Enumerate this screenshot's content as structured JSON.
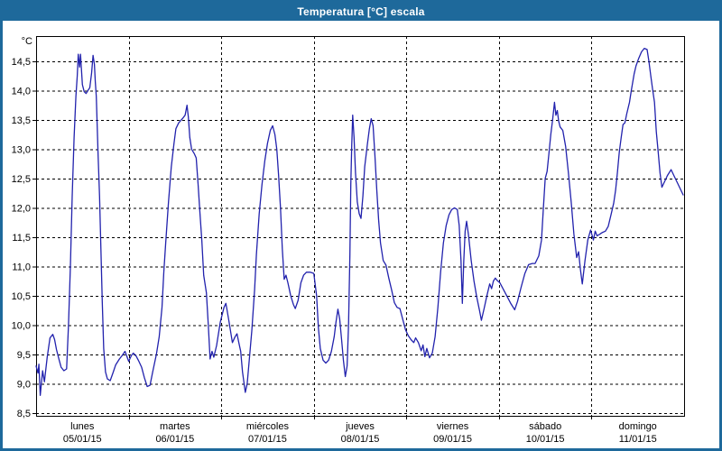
{
  "window": {
    "title": "Temperatura [°C] escala",
    "titlebar_color": "#1e699b",
    "border_color": "#1e699b"
  },
  "chart_data": {
    "type": "line",
    "title": "Temperatura [°C] escala",
    "y_unit": "°C",
    "ylim": [
      8.45,
      14.93
    ],
    "xlim_days": [
      0,
      7
    ],
    "grid": "dashed",
    "legend": "none",
    "line_color": "#2222ad",
    "y_ticks": [
      {
        "value": 14.5,
        "label": "14,5"
      },
      {
        "value": 14.0,
        "label": "14,0"
      },
      {
        "value": 13.5,
        "label": "13,5"
      },
      {
        "value": 13.0,
        "label": "13,0"
      },
      {
        "value": 12.5,
        "label": "12,5"
      },
      {
        "value": 12.0,
        "label": "12,0"
      },
      {
        "value": 11.5,
        "label": "11,5"
      },
      {
        "value": 11.0,
        "label": "11,0"
      },
      {
        "value": 10.5,
        "label": "10,5"
      },
      {
        "value": 10.0,
        "label": "10,0"
      },
      {
        "value": 9.5,
        "label": "9,5"
      },
      {
        "value": 9.0,
        "label": "9,0"
      },
      {
        "value": 8.5,
        "label": "8,5"
      }
    ],
    "x_categories": [
      {
        "day": "lunes",
        "date": "05/01/15"
      },
      {
        "day": "martes",
        "date": "06/01/15"
      },
      {
        "day": "miércoles",
        "date": "07/01/15"
      },
      {
        "day": "jueves",
        "date": "08/01/15"
      },
      {
        "day": "viernes",
        "date": "09/01/15"
      },
      {
        "day": "sábado",
        "date": "10/01/15"
      },
      {
        "day": "domingo",
        "date": "11/01/15"
      }
    ],
    "series": [
      {
        "name": "Temperatura [°C]",
        "points": [
          [
            0.0,
            9.3
          ],
          [
            0.02,
            9.18
          ],
          [
            0.03,
            9.33
          ],
          [
            0.045,
            8.8
          ],
          [
            0.07,
            9.22
          ],
          [
            0.09,
            9.03
          ],
          [
            0.12,
            9.45
          ],
          [
            0.15,
            9.78
          ],
          [
            0.18,
            9.84
          ],
          [
            0.2,
            9.75
          ],
          [
            0.22,
            9.58
          ],
          [
            0.25,
            9.4
          ],
          [
            0.27,
            9.28
          ],
          [
            0.3,
            9.22
          ],
          [
            0.33,
            9.25
          ],
          [
            0.35,
            10.0
          ],
          [
            0.37,
            11.0
          ],
          [
            0.39,
            12.2
          ],
          [
            0.41,
            13.2
          ],
          [
            0.43,
            13.9
          ],
          [
            0.445,
            14.25
          ],
          [
            0.455,
            14.62
          ],
          [
            0.47,
            14.4
          ],
          [
            0.48,
            14.62
          ],
          [
            0.5,
            14.1
          ],
          [
            0.52,
            13.98
          ],
          [
            0.54,
            13.95
          ],
          [
            0.56,
            14.0
          ],
          [
            0.58,
            14.05
          ],
          [
            0.6,
            14.3
          ],
          [
            0.615,
            14.6
          ],
          [
            0.63,
            14.45
          ],
          [
            0.64,
            14.15
          ],
          [
            0.65,
            13.9
          ],
          [
            0.66,
            13.4
          ],
          [
            0.67,
            12.9
          ],
          [
            0.685,
            12.2
          ],
          [
            0.7,
            11.3
          ],
          [
            0.715,
            10.4
          ],
          [
            0.73,
            9.6
          ],
          [
            0.75,
            9.2
          ],
          [
            0.77,
            9.08
          ],
          [
            0.8,
            9.05
          ],
          [
            0.83,
            9.18
          ],
          [
            0.86,
            9.32
          ],
          [
            0.9,
            9.42
          ],
          [
            0.93,
            9.48
          ],
          [
            0.96,
            9.55
          ],
          [
            1.0,
            9.38
          ],
          [
            1.03,
            9.48
          ],
          [
            1.05,
            9.52
          ],
          [
            1.08,
            9.47
          ],
          [
            1.11,
            9.38
          ],
          [
            1.14,
            9.28
          ],
          [
            1.17,
            9.1
          ],
          [
            1.2,
            8.95
          ],
          [
            1.23,
            8.97
          ],
          [
            1.26,
            9.2
          ],
          [
            1.3,
            9.5
          ],
          [
            1.33,
            9.8
          ],
          [
            1.36,
            10.3
          ],
          [
            1.38,
            10.9
          ],
          [
            1.4,
            11.4
          ],
          [
            1.43,
            12.1
          ],
          [
            1.46,
            12.7
          ],
          [
            1.49,
            13.1
          ],
          [
            1.51,
            13.35
          ],
          [
            1.54,
            13.45
          ],
          [
            1.58,
            13.52
          ],
          [
            1.61,
            13.58
          ],
          [
            1.63,
            13.75
          ],
          [
            1.645,
            13.55
          ],
          [
            1.66,
            13.2
          ],
          [
            1.68,
            13.0
          ],
          [
            1.71,
            12.92
          ],
          [
            1.73,
            12.85
          ],
          [
            1.75,
            12.4
          ],
          [
            1.77,
            11.9
          ],
          [
            1.79,
            11.45
          ],
          [
            1.81,
            10.85
          ],
          [
            1.84,
            10.55
          ],
          [
            1.86,
            10.0
          ],
          [
            1.88,
            9.42
          ],
          [
            1.9,
            9.55
          ],
          [
            1.92,
            9.45
          ],
          [
            1.95,
            9.65
          ],
          [
            1.99,
            10.05
          ],
          [
            2.03,
            10.3
          ],
          [
            2.05,
            10.37
          ],
          [
            2.08,
            10.1
          ],
          [
            2.1,
            9.9
          ],
          [
            2.12,
            9.7
          ],
          [
            2.15,
            9.8
          ],
          [
            2.17,
            9.85
          ],
          [
            2.19,
            9.7
          ],
          [
            2.21,
            9.55
          ],
          [
            2.23,
            9.2
          ],
          [
            2.26,
            8.85
          ],
          [
            2.28,
            9.0
          ],
          [
            2.3,
            9.35
          ],
          [
            2.33,
            9.9
          ],
          [
            2.36,
            10.6
          ],
          [
            2.38,
            11.2
          ],
          [
            2.41,
            11.9
          ],
          [
            2.44,
            12.4
          ],
          [
            2.47,
            12.8
          ],
          [
            2.5,
            13.1
          ],
          [
            2.53,
            13.32
          ],
          [
            2.555,
            13.4
          ],
          [
            2.58,
            13.25
          ],
          [
            2.6,
            13.0
          ],
          [
            2.62,
            12.55
          ],
          [
            2.64,
            12.0
          ],
          [
            2.66,
            11.3
          ],
          [
            2.68,
            10.78
          ],
          [
            2.7,
            10.85
          ],
          [
            2.72,
            10.72
          ],
          [
            2.75,
            10.5
          ],
          [
            2.78,
            10.35
          ],
          [
            2.8,
            10.28
          ],
          [
            2.83,
            10.42
          ],
          [
            2.86,
            10.72
          ],
          [
            2.89,
            10.85
          ],
          [
            2.92,
            10.9
          ],
          [
            2.96,
            10.9
          ],
          [
            3.0,
            10.88
          ],
          [
            3.03,
            10.5
          ],
          [
            3.05,
            9.95
          ],
          [
            3.07,
            9.6
          ],
          [
            3.1,
            9.4
          ],
          [
            3.13,
            9.35
          ],
          [
            3.16,
            9.4
          ],
          [
            3.19,
            9.55
          ],
          [
            3.22,
            9.8
          ],
          [
            3.24,
            10.05
          ],
          [
            3.26,
            10.27
          ],
          [
            3.28,
            10.1
          ],
          [
            3.3,
            9.75
          ],
          [
            3.32,
            9.4
          ],
          [
            3.34,
            9.12
          ],
          [
            3.36,
            9.3
          ],
          [
            3.375,
            10.0
          ],
          [
            3.39,
            11.2
          ],
          [
            3.4,
            12.4
          ],
          [
            3.41,
            13.1
          ],
          [
            3.42,
            13.58
          ],
          [
            3.435,
            13.2
          ],
          [
            3.45,
            12.6
          ],
          [
            3.47,
            12.1
          ],
          [
            3.49,
            11.9
          ],
          [
            3.51,
            11.82
          ],
          [
            3.53,
            12.2
          ],
          [
            3.55,
            12.7
          ],
          [
            3.58,
            13.1
          ],
          [
            3.6,
            13.35
          ],
          [
            3.62,
            13.52
          ],
          [
            3.64,
            13.4
          ],
          [
            3.66,
            12.9
          ],
          [
            3.68,
            12.3
          ],
          [
            3.7,
            11.8
          ],
          [
            3.72,
            11.4
          ],
          [
            3.75,
            11.1
          ],
          [
            3.78,
            11.02
          ],
          [
            3.81,
            10.8
          ],
          [
            3.84,
            10.6
          ],
          [
            3.87,
            10.38
          ],
          [
            3.9,
            10.3
          ],
          [
            3.93,
            10.28
          ],
          [
            3.96,
            10.1
          ],
          [
            3.99,
            9.92
          ],
          [
            4.02,
            9.82
          ],
          [
            4.05,
            9.75
          ],
          [
            4.08,
            9.7
          ],
          [
            4.1,
            9.78
          ],
          [
            4.13,
            9.7
          ],
          [
            4.16,
            9.56
          ],
          [
            4.18,
            9.66
          ],
          [
            4.2,
            9.46
          ],
          [
            4.22,
            9.6
          ],
          [
            4.25,
            9.44
          ],
          [
            4.28,
            9.52
          ],
          [
            4.31,
            9.8
          ],
          [
            4.34,
            10.3
          ],
          [
            4.37,
            10.9
          ],
          [
            4.4,
            11.4
          ],
          [
            4.43,
            11.7
          ],
          [
            4.46,
            11.88
          ],
          [
            4.49,
            11.97
          ],
          [
            4.52,
            12.0
          ],
          [
            4.55,
            11.97
          ],
          [
            4.57,
            11.7
          ],
          [
            4.59,
            11.1
          ],
          [
            4.605,
            10.37
          ],
          [
            4.62,
            11.1
          ],
          [
            4.635,
            11.6
          ],
          [
            4.65,
            11.77
          ],
          [
            4.67,
            11.55
          ],
          [
            4.7,
            11.1
          ],
          [
            4.73,
            10.75
          ],
          [
            4.76,
            10.48
          ],
          [
            4.79,
            10.25
          ],
          [
            4.81,
            10.08
          ],
          [
            4.84,
            10.28
          ],
          [
            4.87,
            10.5
          ],
          [
            4.9,
            10.7
          ],
          [
            4.92,
            10.62
          ],
          [
            4.94,
            10.75
          ],
          [
            4.96,
            10.8
          ],
          [
            4.98,
            10.76
          ],
          [
            5.01,
            10.72
          ],
          [
            5.05,
            10.6
          ],
          [
            5.09,
            10.48
          ],
          [
            5.13,
            10.36
          ],
          [
            5.17,
            10.26
          ],
          [
            5.2,
            10.4
          ],
          [
            5.24,
            10.65
          ],
          [
            5.28,
            10.88
          ],
          [
            5.32,
            11.03
          ],
          [
            5.36,
            11.05
          ],
          [
            5.39,
            11.05
          ],
          [
            5.43,
            11.18
          ],
          [
            5.46,
            11.45
          ],
          [
            5.48,
            12.0
          ],
          [
            5.5,
            12.5
          ],
          [
            5.52,
            12.62
          ],
          [
            5.54,
            12.92
          ],
          [
            5.56,
            13.25
          ],
          [
            5.58,
            13.5
          ],
          [
            5.6,
            13.8
          ],
          [
            5.615,
            13.58
          ],
          [
            5.63,
            13.66
          ],
          [
            5.645,
            13.48
          ],
          [
            5.66,
            13.38
          ],
          [
            5.69,
            13.32
          ],
          [
            5.72,
            13.05
          ],
          [
            5.75,
            12.6
          ],
          [
            5.78,
            12.1
          ],
          [
            5.81,
            11.55
          ],
          [
            5.84,
            11.15
          ],
          [
            5.86,
            11.25
          ],
          [
            5.88,
            10.95
          ],
          [
            5.9,
            10.7
          ],
          [
            5.93,
            11.1
          ],
          [
            5.96,
            11.45
          ],
          [
            5.99,
            11.62
          ],
          [
            6.02,
            11.45
          ],
          [
            6.04,
            11.6
          ],
          [
            6.06,
            11.52
          ],
          [
            6.09,
            11.55
          ],
          [
            6.12,
            11.58
          ],
          [
            6.15,
            11.6
          ],
          [
            6.18,
            11.68
          ],
          [
            6.21,
            11.88
          ],
          [
            6.24,
            12.08
          ],
          [
            6.26,
            12.3
          ],
          [
            6.28,
            12.6
          ],
          [
            6.3,
            12.95
          ],
          [
            6.32,
            13.2
          ],
          [
            6.34,
            13.42
          ],
          [
            6.36,
            13.45
          ],
          [
            6.38,
            13.6
          ],
          [
            6.41,
            13.8
          ],
          [
            6.43,
            14.0
          ],
          [
            6.46,
            14.28
          ],
          [
            6.48,
            14.42
          ],
          [
            6.51,
            14.55
          ],
          [
            6.54,
            14.66
          ],
          [
            6.57,
            14.72
          ],
          [
            6.6,
            14.7
          ],
          [
            6.62,
            14.5
          ],
          [
            6.64,
            14.25
          ],
          [
            6.66,
            14.02
          ],
          [
            6.68,
            13.8
          ],
          [
            6.7,
            13.3
          ],
          [
            6.72,
            12.95
          ],
          [
            6.74,
            12.6
          ],
          [
            6.76,
            12.35
          ],
          [
            6.79,
            12.45
          ],
          [
            6.82,
            12.55
          ],
          [
            6.86,
            12.65
          ],
          [
            6.89,
            12.55
          ],
          [
            6.93,
            12.42
          ],
          [
            6.96,
            12.32
          ],
          [
            6.99,
            12.22
          ]
        ]
      }
    ]
  }
}
